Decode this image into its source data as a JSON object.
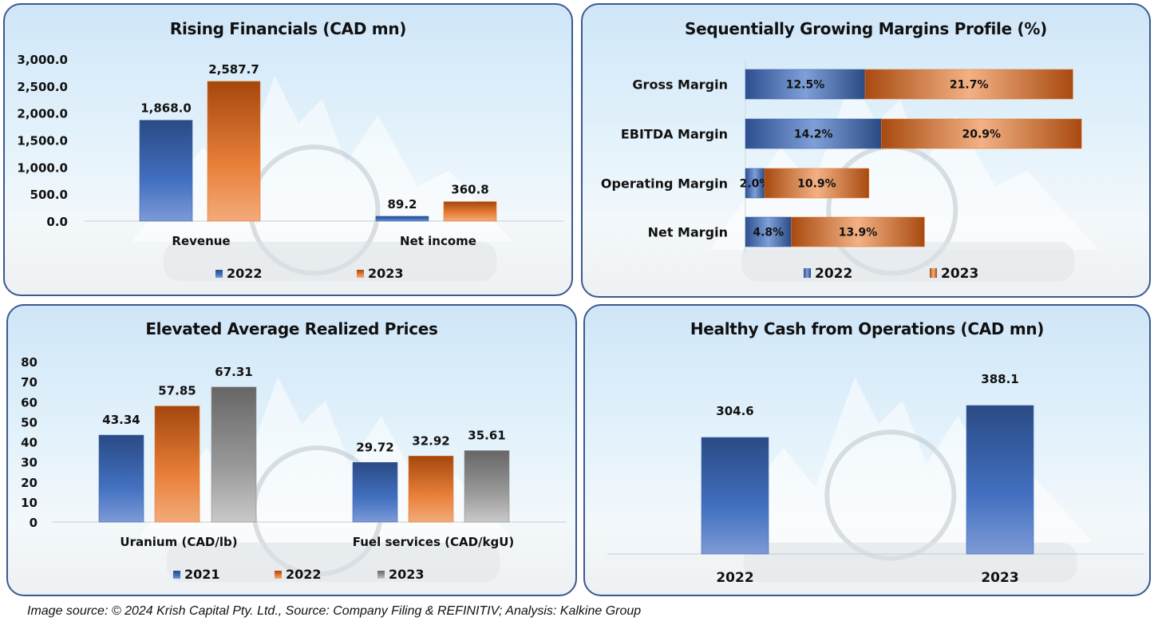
{
  "footer": {
    "text": "Image source: © 2024 Krish Capital Pty. Ltd., Source: Company Filing & REFINITIV; Analysis: Kalkine Group"
  },
  "colors": {
    "blue": "#3f66b0",
    "blue_dark": "#27457f",
    "orange": "#e8782f",
    "orange_dark": "#a5470e",
    "gray": "#8f8f8f",
    "gray_dark": "#646464"
  },
  "chart_data": [
    {
      "id": "rising-financials",
      "type": "bar",
      "title": "Rising Financials (CAD mn)",
      "categories": [
        "Revenue",
        "Net income"
      ],
      "series": [
        {
          "name": "2022",
          "color": "blue",
          "values": [
            1868.0,
            89.2
          ],
          "labels": [
            "1,868.0",
            "89.2"
          ]
        },
        {
          "name": "2023",
          "color": "orange",
          "values": [
            2587.7,
            360.8
          ],
          "labels": [
            "2,587.7",
            "360.8"
          ]
        }
      ],
      "ylim": [
        0,
        3000
      ],
      "yticks": [
        "0.0",
        "500.0",
        "1,000.0",
        "1,500.0",
        "2,000.0",
        "2,500.0",
        "3,000.0"
      ],
      "ytick_values": [
        0,
        500,
        1000,
        1500,
        2000,
        2500,
        3000
      ],
      "xlabel": "",
      "ylabel": "",
      "legend": "bottom",
      "grid": false
    },
    {
      "id": "margins-profile",
      "type": "bar",
      "orientation": "horizontal-stacked",
      "title": "Sequentially Growing Margins Profile (%)",
      "categories": [
        "Gross Margin",
        "EBITDA Margin",
        "Operating Margin",
        "Net Margin"
      ],
      "series": [
        {
          "name": "2022",
          "color": "blue",
          "values": [
            12.5,
            14.2,
            2.0,
            4.8
          ],
          "labels": [
            "12.5%",
            "14.2%",
            "2.0%",
            "4.8%"
          ]
        },
        {
          "name": "2023",
          "color": "orange",
          "values": [
            21.7,
            20.9,
            10.9,
            13.9
          ],
          "labels": [
            "21.7%",
            "20.9%",
            "10.9%",
            "13.9%"
          ]
        }
      ],
      "xlim": [
        0,
        35
      ],
      "legend": "bottom",
      "grid": false
    },
    {
      "id": "realized-prices",
      "type": "bar",
      "title": "Elevated Average Realized Prices",
      "categories": [
        "Uranium (CAD/lb)",
        "Fuel services (CAD/kgU)"
      ],
      "series": [
        {
          "name": "2021",
          "color": "blue",
          "values": [
            43.34,
            29.72
          ],
          "labels": [
            "43.34",
            "29.72"
          ]
        },
        {
          "name": "2022",
          "color": "orange",
          "values": [
            57.85,
            32.92
          ],
          "labels": [
            "57.85",
            "32.92"
          ]
        },
        {
          "name": "2023",
          "color": "gray",
          "values": [
            67.31,
            35.61
          ],
          "labels": [
            "67.31",
            "35.61"
          ]
        }
      ],
      "ylim": [
        0,
        80
      ],
      "yticks": [
        "0",
        "10",
        "20",
        "30",
        "40",
        "50",
        "60",
        "70",
        "80"
      ],
      "ytick_values": [
        0,
        10,
        20,
        30,
        40,
        50,
        60,
        70,
        80
      ],
      "legend": "bottom",
      "grid": false
    },
    {
      "id": "cash-from-operations",
      "type": "bar",
      "title": "Healthy Cash from Operations (CAD mn)",
      "categories": [
        "2022",
        "2023"
      ],
      "series": [
        {
          "name": "Cash from Operations",
          "color": "blue",
          "values": [
            304.6,
            388.1
          ],
          "labels": [
            "304.6",
            "388.1"
          ]
        }
      ],
      "ylim": [
        0,
        1000
      ],
      "legend": "none",
      "grid": false
    }
  ]
}
